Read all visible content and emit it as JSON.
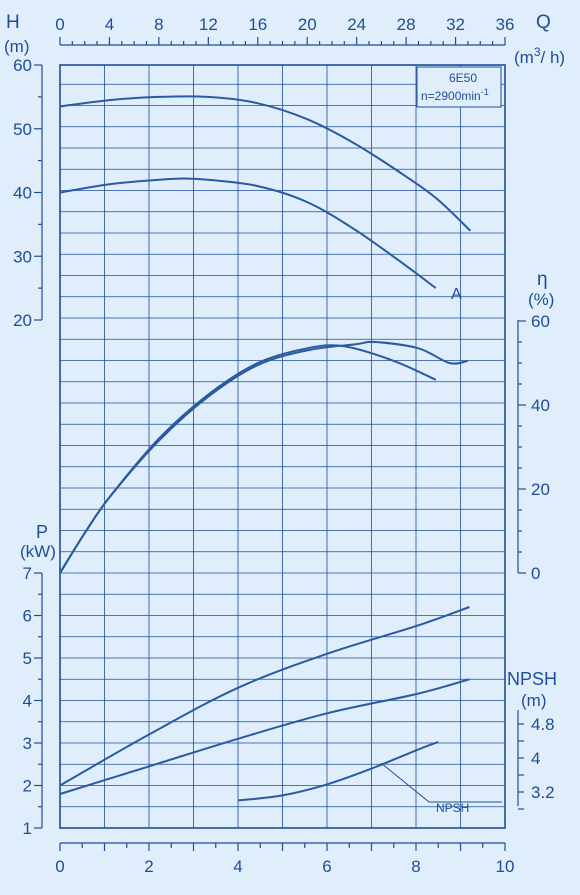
{
  "colors": {
    "background": "#dfeefa",
    "lines": "#1f4e96"
  },
  "chart_data": {
    "type": "line",
    "model_box": {
      "model": "6E50",
      "speed_label": "n=2900min",
      "speed_exp": "-1"
    },
    "axes": {
      "q_top": {
        "label": "Q",
        "unit_pre": "(m",
        "unit_sup": "3",
        "unit_post": "/ h)",
        "ticks": [
          "0",
          "4",
          "8",
          "12",
          "16",
          "20",
          "24",
          "28",
          "32",
          "36"
        ],
        "range": [
          0,
          36
        ]
      },
      "h_left": {
        "label": "H",
        "unit": "(m)",
        "ticks": [
          "20",
          "30",
          "40",
          "50",
          "60"
        ],
        "range": [
          20,
          60
        ]
      },
      "eta_right": {
        "label": "η",
        "unit": "(%)",
        "ticks": [
          "0",
          "20",
          "40",
          "60"
        ],
        "range": [
          0,
          60
        ]
      },
      "p_left": {
        "label": "P",
        "unit": "(kW)",
        "ticks": [
          "1",
          "2",
          "3",
          "4",
          "5",
          "6",
          "7"
        ],
        "range": [
          1,
          7
        ]
      },
      "npsh_right": {
        "label": "NPSH",
        "unit": "(m)",
        "ticks": [
          "3.2",
          "4",
          "4.8"
        ],
        "range": [
          3.2,
          4.8
        ]
      },
      "q_bottom": {
        "ticks": [
          "0",
          "2",
          "4",
          "6",
          "8",
          "10"
        ],
        "range": [
          0,
          10
        ]
      }
    },
    "head_curves": [
      {
        "x": [
          0,
          4,
          8,
          12,
          16,
          20,
          24,
          28,
          30.5,
          33.2
        ],
        "y": [
          53.5,
          54.5,
          55,
          55,
          54,
          51.5,
          47.5,
          42.5,
          39,
          34
        ]
      },
      {
        "name": "A",
        "x": [
          0,
          4,
          8,
          10,
          12,
          16,
          20,
          24,
          28,
          30.4
        ],
        "y": [
          40,
          41.3,
          42,
          42.2,
          42,
          41,
          38.5,
          34,
          28.5,
          25
        ]
      }
    ],
    "efficiency_curves": [
      {
        "x": [
          0,
          2,
          4,
          8,
          12,
          16,
          20,
          23,
          27,
          30.4
        ],
        "y": [
          0,
          9.5,
          18,
          32,
          42.5,
          50,
          53.5,
          54,
          50.5,
          46
        ]
      },
      {
        "x": [
          0,
          2,
          4,
          8,
          12,
          16,
          20,
          24,
          25.5,
          29,
          31.5,
          33
        ],
        "y": [
          0,
          9.5,
          18,
          31.5,
          42,
          49.5,
          53,
          54.5,
          55,
          53.5,
          50,
          50.5
        ]
      }
    ],
    "power_curves": [
      {
        "x": [
          0,
          2,
          4,
          6,
          8,
          9.2
        ],
        "y": [
          2.0,
          3.2,
          4.3,
          5.1,
          5.75,
          6.2
        ]
      },
      {
        "x": [
          0,
          2,
          4,
          6,
          8,
          9.2
        ],
        "y": [
          1.8,
          2.45,
          3.1,
          3.7,
          4.15,
          4.5
        ]
      }
    ],
    "npsh_curve": {
      "name": "NPSH",
      "x": [
        4,
        5,
        6,
        7,
        8,
        8.5
      ],
      "y": [
        3.0,
        3.12,
        3.38,
        3.75,
        4.18,
        4.38
      ]
    }
  }
}
